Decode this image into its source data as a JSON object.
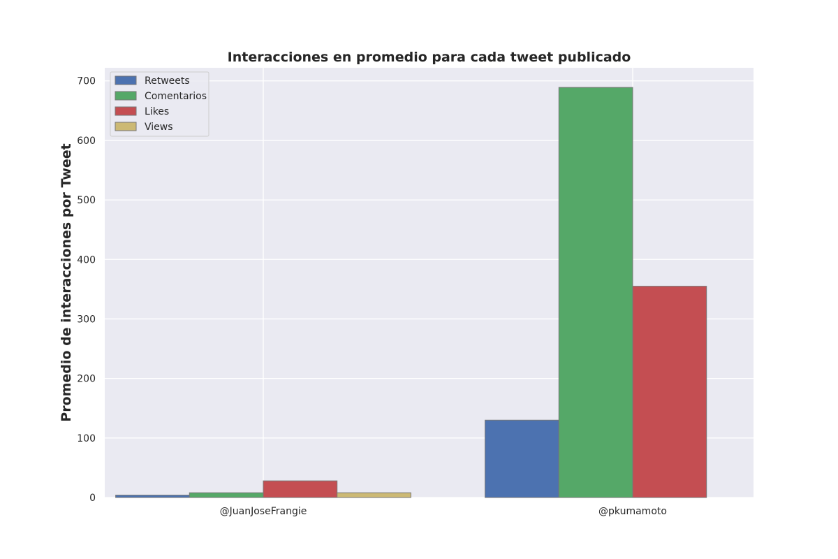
{
  "chart_data": {
    "type": "bar",
    "title": "Interacciones en promedio para cada tweet publicado",
    "xlabel": "",
    "ylabel": "Promedio de interacciones por Tweet",
    "categories": [
      "@JuanJoseFrangie",
      "@pkumamoto"
    ],
    "series": [
      {
        "name": "Retweets",
        "color": "#4c72b0",
        "values": [
          4,
          130
        ]
      },
      {
        "name": "Comentarios",
        "color": "#55a868",
        "values": [
          8,
          689
        ]
      },
      {
        "name": "Likes",
        "color": "#c44e52",
        "values": [
          28,
          355
        ]
      },
      {
        "name": "Views",
        "color": "#ccb974",
        "values": [
          8,
          0
        ]
      }
    ],
    "ylim": [
      0,
      722
    ],
    "yticks": [
      0,
      100,
      200,
      300,
      400,
      500,
      600,
      700
    ],
    "grid": true,
    "legend_position": "top-left",
    "background_color": "#eaeaf2"
  }
}
